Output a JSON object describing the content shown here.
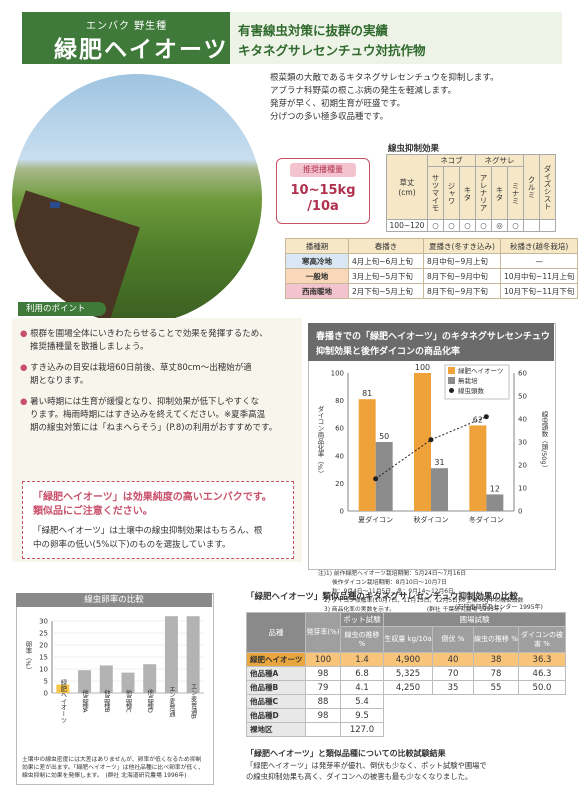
{
  "header": {
    "subtitle": "エンバク 野生種",
    "title": "緑肥ヘイオーツ",
    "tagline1": "有害線虫対策に抜群の実績",
    "tagline2": "キタネグサレセンチュウ対抗作物"
  },
  "intro": [
    "根菜類の大敵であるキタネグサレセンチュウを抑制します。",
    "アブラナ科野菜の根こぶ病の発生を軽減します。",
    "発芽が早く、初期生育が旺盛です。",
    "分げつの多い極多収品種です。"
  ],
  "seeding": {
    "label": "推奨播種量",
    "value1": "10~15kg",
    "value2": "/10a"
  },
  "nematode": {
    "title": "線虫抑制効果",
    "group_headers": [
      "ネコブ",
      "ネグサレ"
    ],
    "row_header": "草丈\n(cm)",
    "columns": [
      "サツマイモ",
      "ジャワ",
      "キタ",
      "アレナリア",
      "キタ",
      "ミナミ",
      "クルミ",
      "ダイズシスト"
    ],
    "row_label": "100~120",
    "row_values": [
      "○",
      "○",
      "○",
      "○",
      "◎",
      "○",
      "",
      ""
    ]
  },
  "sowing": {
    "headers": [
      "播種期",
      "春播き",
      "夏播き(冬すき込み)",
      "秋播き(越冬栽培)"
    ],
    "rows": [
      {
        "region": "寒高冷地",
        "spring": "4月上旬~6月上旬",
        "summer": "8月中旬~9月上旬",
        "autumn": "—"
      },
      {
        "region": "一般地",
        "spring": "3月上旬~5月下旬",
        "summer": "8月下旬~9月中旬",
        "autumn": "10月中旬~11月上旬"
      },
      {
        "region": "西南暖地",
        "spring": "2月下旬~5月上旬",
        "summer": "8月下旬~9月下旬",
        "autumn": "10月下旬~11月下旬"
      }
    ]
  },
  "points": {
    "header": "利用のポイント",
    "items": [
      [
        "根群を圃場全体にいきわたらせることで効果を発揮するため、",
        "推奨播種量を散播しましょう。"
      ],
      [
        "すき込みの目安は栽培60日前後、草丈80cm～出穂始が適",
        "期となります。"
      ],
      [
        "暑い時期には生育が緩慢となり、抑制効果が低下しやすくな",
        "ります。梅雨時期にはすき込みを終えてください。※夏季高温",
        "期の線虫対策には「ねまへらそう」(P.8)の利用がおすすめです。"
      ]
    ]
  },
  "callout": {
    "line1": "「緑肥ヘイオーツ」は効果純度の高いエンバクです。",
    "line2": "類似品にご注意ください。",
    "body1": "「緑肥ヘイオーツ」は土壌中の線虫抑制効果はもちろん、根",
    "body2": "中の卵率の低い(5%以下)のものを選抜しています。"
  },
  "chart1_title": [
    "春播きでの「緑肥ヘイオーツ」のキタネグサレセンチュウ",
    "抑制効果と後作ダイコンの商品化率"
  ],
  "chart1_notes": [
    "注)1) 前作緑肥ヘイオーツ栽培期間：5月24日～7月16日",
    "後作ダイコン栽培期間：8月10日～10月7日",
    "秋：9月4日～11月5日、冬：9月14～12月6日",
    "2) ダイコン収穫率(10月7日、11月15日、12月5日)の土壌50g中の線虫頭数",
    "3) 商品化率の実数を示す。　　　　　　(群社 千葉研究農場 1993年)"
  ],
  "chart2_title": "線虫卵率の比較",
  "chart2_notes": [
    "土壌中の線虫密度には大差はありませんが、卵率が低くなるため抑制",
    "効果に差が出ます。「緑肥ヘイオーツ」は他社品種に比べ卵率が低く、",
    "線虫抑制に効果を発揮します。　(群社 北海道研究農場 1996年)"
  ],
  "chart_data": [
    {
      "type": "bar",
      "categories": [
        "夏ダイコン",
        "秋ダイコン",
        "冬ダイコン"
      ],
      "series": [
        {
          "name": "緑肥ヘイオーツ",
          "values": [
            81,
            100,
            62
          ],
          "color": "#f0a23a"
        },
        {
          "name": "無栽培",
          "values": [
            50,
            31,
            12
          ],
          "color": "#8c8c8c"
        },
        {
          "name": "線虫頭数",
          "values": [
            14,
            31,
            41
          ],
          "axis": "right"
        }
      ],
      "value_labels": [
        [
          "81",
          "50"
        ],
        [
          "100",
          "31"
        ],
        [
          "62",
          "12"
        ]
      ],
      "left_label": "ダイコン商品化率（%）",
      "right_label": "線虫頭数（頭/50g）",
      "ylim": [
        0,
        100
      ],
      "y2lim": [
        0,
        60
      ],
      "yticks": [
        0,
        20,
        40,
        60,
        80,
        100
      ],
      "y2ticks": [
        0,
        10,
        20,
        30,
        40,
        50,
        60
      ]
    },
    {
      "type": "bar",
      "categories": [
        "緑肥ヘイオーツ",
        "他品種A",
        "他品種B",
        "他品種C",
        "他品種D",
        "エン麦普通",
        "エン麦普通B"
      ],
      "values": [
        3.5,
        9.5,
        11.5,
        8.5,
        12,
        32,
        32
      ],
      "colors": [
        "#f7c548",
        "#b3b3b3",
        "#b3b3b3",
        "#b3b3b3",
        "#b3b3b3",
        "#b3b3b3",
        "#b3b3b3"
      ],
      "ylabel": "卵率（%）",
      "ylim": [
        0,
        30
      ],
      "yticks": [
        0,
        5,
        10,
        15,
        20,
        25,
        30
      ]
    }
  ],
  "similar": {
    "title": "「緑肥ヘイオーツ」類似品種のキタネグサレセンチュウ抑制効果の比較",
    "source": "(石狩南部普及センター 1995年)",
    "group1": "ポット試験",
    "group2": "圃場試験",
    "headers": [
      "品種",
      "発芽率(%)",
      "線虫の推移 %",
      "生収量 kg/10a",
      "倒伏 %",
      "線虫の推移 %",
      "ダイコンの被害 %"
    ],
    "rows": [
      [
        "緑肥ヘイオーツ",
        "100",
        "1.4",
        "4,900",
        "40",
        "38",
        "36.3"
      ],
      [
        "他品種A",
        "98",
        "6.8",
        "5,325",
        "70",
        "78",
        "46.3"
      ],
      [
        "他品種B",
        "79",
        "4.1",
        "4,250",
        "35",
        "55",
        "50.0"
      ],
      [
        "他品種C",
        "88",
        "5.4",
        "",
        "",
        "",
        ""
      ],
      [
        "他品種D",
        "98",
        "9.5",
        "",
        "",
        "",
        ""
      ],
      [
        "裸地区",
        "",
        "127.0",
        "",
        "",
        "",
        ""
      ]
    ],
    "foot_title": "「緑肥ヘイオーツ」と類似品種についての比較試験結果",
    "foot": [
      "「緑肥ヘイオーツ」は発芽率が優れ、倒伏も少なく、ポット試験や圃場で",
      "の線虫抑制効果も高く、ダイコンへの被害も最も少なくなりました。"
    ]
  }
}
